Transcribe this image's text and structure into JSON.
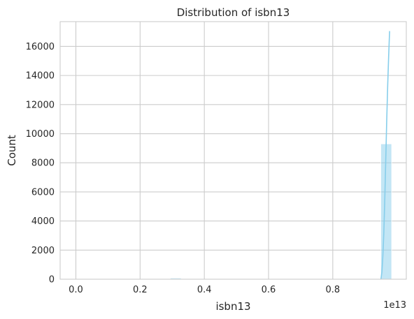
{
  "chart_data": {
    "type": "bar",
    "title": "Distribution of isbn13",
    "xlabel": "isbn13",
    "ylabel": "Count",
    "x_offset_label": "1e13",
    "xlim": [
      -0.049,
      1.029
    ],
    "ylim": [
      0,
      17700
    ],
    "x_ticks": [
      0.0,
      0.2,
      0.4,
      0.6,
      0.8
    ],
    "x_tick_labels": [
      "0.0",
      "0.2",
      "0.4",
      "0.6",
      "0.8"
    ],
    "y_ticks": [
      0,
      2000,
      4000,
      6000,
      8000,
      10000,
      12000,
      14000,
      16000
    ],
    "y_tick_labels": [
      "0",
      "2000",
      "4000",
      "6000",
      "8000",
      "10000",
      "12000",
      "14000",
      "16000"
    ],
    "bin_width": 0.0339,
    "bins": [
      {
        "x": 0.294,
        "count": 80
      },
      {
        "x": 0.9495,
        "count": 9300
      }
    ],
    "kde": {
      "x": [
        0.95,
        0.953,
        0.956,
        0.959,
        0.962,
        0.965,
        0.968,
        0.971,
        0.974,
        0.977
      ],
      "y": [
        0,
        500,
        1600,
        3200,
        5500,
        8200,
        10900,
        13300,
        15300,
        17050
      ]
    },
    "grid": true,
    "colors": {
      "bar_fill": "#87ceeb",
      "bar_opacity": 0.5,
      "bar_edge": "#ffffff",
      "kde_line": "#87ceeb",
      "grid": "#cccccc"
    }
  }
}
